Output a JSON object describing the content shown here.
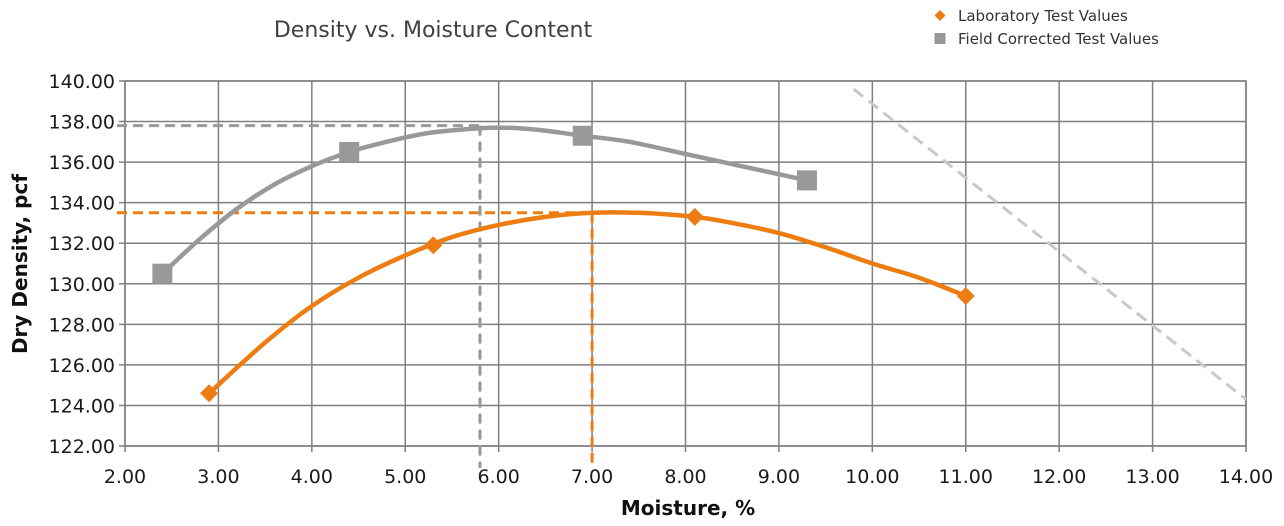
{
  "chart_data": {
    "type": "scatter",
    "title": "Density vs. Moisture Content",
    "xlabel": "Moisture, %",
    "ylabel": "Dry Density, pcf",
    "xlim": [
      2.0,
      14.0
    ],
    "ylim": [
      122.0,
      140.0
    ],
    "x_ticks": [
      "2.00",
      "3.00",
      "4.00",
      "5.00",
      "6.00",
      "7.00",
      "8.00",
      "9.00",
      "10.00",
      "11.00",
      "12.00",
      "13.00",
      "14.00"
    ],
    "y_ticks": [
      "122.00",
      "124.00",
      "126.00",
      "128.00",
      "130.00",
      "132.00",
      "134.00",
      "136.00",
      "138.00",
      "140.00"
    ],
    "grid": true,
    "legend_position": "top-right",
    "series": [
      {
        "name": "Laboratory Test Values",
        "color": "#ED7D10",
        "marker": "diamond",
        "x": [
          2.9,
          5.3,
          8.1,
          11.0
        ],
        "y": [
          124.6,
          131.9,
          133.3,
          129.4
        ],
        "curve": [
          [
            2.9,
            124.6
          ],
          [
            3.5,
            127.1
          ],
          [
            4.0,
            128.9
          ],
          [
            4.5,
            130.3
          ],
          [
            5.0,
            131.4
          ],
          [
            5.5,
            132.3
          ],
          [
            6.0,
            132.9
          ],
          [
            6.5,
            133.3
          ],
          [
            7.0,
            133.5
          ],
          [
            7.5,
            133.5
          ],
          [
            8.1,
            133.3
          ],
          [
            8.5,
            133.0
          ],
          [
            9.0,
            132.5
          ],
          [
            9.5,
            131.8
          ],
          [
            10.0,
            131.0
          ],
          [
            10.5,
            130.3
          ],
          [
            11.0,
            129.4
          ]
        ],
        "peak": [
          7.0,
          133.5
        ]
      },
      {
        "name": "Field Corrected Test Values",
        "color": "#999999",
        "marker": "square",
        "x": [
          2.4,
          4.4,
          6.9,
          9.3
        ],
        "y": [
          130.5,
          136.5,
          137.3,
          135.1
        ],
        "curve": [
          [
            2.4,
            130.5
          ],
          [
            2.8,
            132.2
          ],
          [
            3.2,
            133.7
          ],
          [
            3.6,
            134.9
          ],
          [
            4.0,
            135.8
          ],
          [
            4.4,
            136.5
          ],
          [
            4.8,
            137.0
          ],
          [
            5.2,
            137.4
          ],
          [
            5.6,
            137.6
          ],
          [
            6.0,
            137.7
          ],
          [
            6.4,
            137.6
          ],
          [
            6.9,
            137.3
          ],
          [
            7.4,
            137.0
          ],
          [
            8.0,
            136.4
          ],
          [
            8.6,
            135.8
          ],
          [
            9.3,
            135.1
          ]
        ],
        "peak": [
          5.8,
          137.8
        ]
      }
    ],
    "zero_air_voids_line": {
      "color": "#C8C8C8",
      "x": [
        9.8,
        14.0
      ],
      "y": [
        139.6,
        124.3
      ]
    }
  }
}
